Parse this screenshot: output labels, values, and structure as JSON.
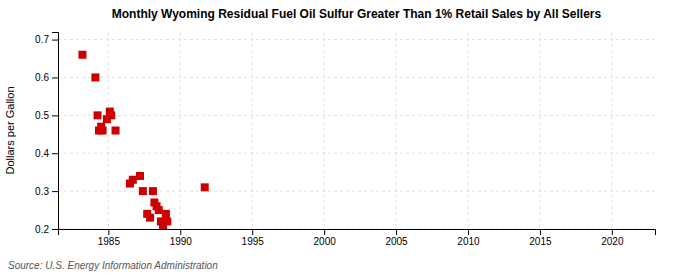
{
  "chart_data": {
    "type": "scatter",
    "title": "Monthly Wyoming Residual Fuel Oil Sulfur Greater Than 1% Retail Sales by All Sellers",
    "ylabel": "Dollars per Gallon",
    "annotations": [
      "Source: U.S. Energy Information Administration"
    ],
    "x": [
      1983.2,
      1984.1,
      1984.25,
      1984.35,
      1984.5,
      1984.6,
      1984.9,
      1985.1,
      1985.2,
      1985.5,
      1986.5,
      1986.7,
      1987.2,
      1987.4,
      1987.7,
      1987.9,
      1988.1,
      1988.2,
      1988.35,
      1988.5,
      1988.65,
      1988.8,
      1989.0,
      1989.1,
      1991.7
    ],
    "values": [
      0.66,
      0.6,
      0.5,
      0.46,
      0.47,
      0.46,
      0.49,
      0.51,
      0.5,
      0.46,
      0.32,
      0.33,
      0.34,
      0.3,
      0.24,
      0.23,
      0.3,
      0.27,
      0.26,
      0.25,
      0.22,
      0.21,
      0.24,
      0.22,
      0.31
    ],
    "color": "#cc0000",
    "marker": "square",
    "xlim": [
      1981.5,
      2023
    ],
    "ylim": [
      0.2,
      0.72
    ],
    "xticks": [
      1985,
      1990,
      1995,
      2000,
      2005,
      2010,
      2015,
      2020
    ],
    "yticks": [
      0.2,
      0.3,
      0.4,
      0.5,
      0.6,
      0.7
    ],
    "grid": true
  }
}
